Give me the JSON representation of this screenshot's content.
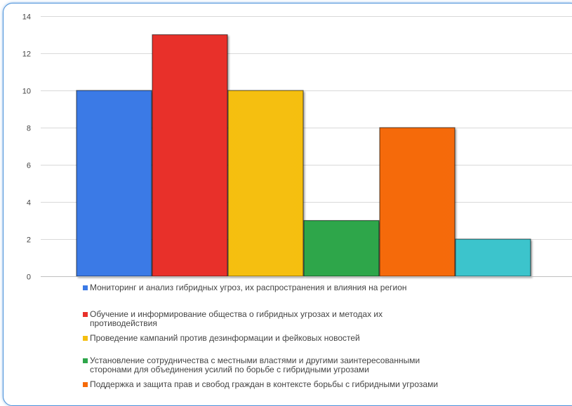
{
  "chart_data": {
    "type": "bar",
    "title": "",
    "xlabel": "",
    "ylabel": "",
    "ylim": [
      0,
      14
    ],
    "yticks": [
      0,
      2,
      4,
      6,
      8,
      10,
      12,
      14
    ],
    "grid": true,
    "legend_position": "bottom",
    "series": [
      {
        "name": "Мониторинг и анализ гибридных угроз, их распространения и влияния на регион",
        "value": 10,
        "color": "#3b7ae6"
      },
      {
        "name": "Обучение и информирование общества о гибридных угрозах и методах их противодействия",
        "value": 13,
        "color": "#e8302a"
      },
      {
        "name": "Проведение кампаний против дезинформации и фейковых новостей",
        "value": 10,
        "color": "#f5bf10"
      },
      {
        "name": "Установление сотрудничества с местными властями и другими заинтересованными сторонами для объединения усилий по борьбе с гибридными угрозами",
        "value": 3,
        "color": "#2ea64a"
      },
      {
        "name": "Поддержка и защита прав и свобод граждан в контексте борьбы с гибридными угрозами",
        "value": 8,
        "color": "#f56a0a"
      },
      {
        "name": "",
        "value": 2,
        "color": "#3cc4cc"
      }
    ],
    "legend_lines": [
      [
        "Мониторинг и анализ гибридных угроз, их распространения и влияния на регион"
      ],
      [
        "Обучение и информирование общества о гибридных угрозах и методах их",
        "противодействия"
      ],
      [
        "Проведение кампаний против дезинформации и фейковых новостей"
      ],
      [
        "Установление сотрудничества с местными властями и другими заинтересованными",
        "сторонами для объединения усилий по борьбе с гибридными угрозами"
      ],
      [
        "Поддержка и защита прав и свобод граждан в контексте борьбы с гибридными угрозами"
      ]
    ]
  }
}
